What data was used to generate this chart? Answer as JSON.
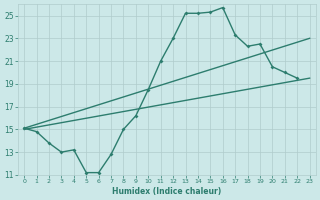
{
  "xlabel": "Humidex (Indice chaleur)",
  "ylabel": "",
  "xlim": [
    -0.5,
    23.5
  ],
  "ylim": [
    11,
    26
  ],
  "yticks": [
    11,
    13,
    15,
    17,
    19,
    21,
    23,
    25
  ],
  "xticks": [
    0,
    1,
    2,
    3,
    4,
    5,
    6,
    7,
    8,
    9,
    10,
    11,
    12,
    13,
    14,
    15,
    16,
    17,
    18,
    19,
    20,
    21,
    22,
    23
  ],
  "bg_color": "#cce8e8",
  "grid_color": "#b0cccc",
  "line_color": "#2d7d6e",
  "line1_x": [
    0,
    1,
    2,
    3,
    4,
    5,
    6,
    7,
    8,
    9,
    10,
    11,
    12,
    13,
    14,
    15,
    16,
    17,
    18,
    19,
    20,
    21,
    22
  ],
  "line1_y": [
    15.1,
    14.8,
    13.8,
    13.0,
    13.2,
    11.2,
    11.2,
    12.8,
    15.0,
    16.2,
    18.5,
    21.0,
    23.0,
    25.2,
    25.2,
    25.3,
    25.7,
    23.3,
    22.3,
    22.5,
    20.5,
    20.0,
    19.5
  ],
  "line2_x": [
    0,
    23
  ],
  "line2_y": [
    15.0,
    19.5
  ],
  "line3_x": [
    0,
    23
  ],
  "line3_y": [
    15.1,
    23.0
  ]
}
